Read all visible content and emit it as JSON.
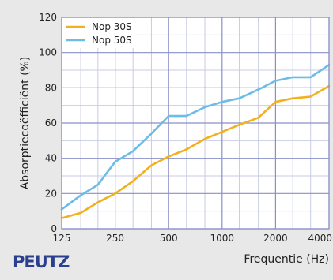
{
  "chart_data": {
    "type": "line",
    "xlabel": "Frequentie (Hz)",
    "ylabel": "Absorptiecoëfficiënt (%)",
    "xscale": "log",
    "xlim": [
      125,
      4000
    ],
    "ylim": [
      0,
      120
    ],
    "grid": true,
    "legend_position": "top-left",
    "x_tick_labels": [
      "125",
      "250",
      "500",
      "1000",
      "2000",
      "4000"
    ],
    "x_tick_values": [
      125,
      250,
      500,
      1000,
      2000,
      4000
    ],
    "y_tick_labels": [
      "0",
      "20",
      "40",
      "60",
      "80",
      "100",
      "120"
    ],
    "y_tick_values": [
      0,
      20,
      40,
      60,
      80,
      100,
      120
    ],
    "x": [
      125,
      160,
      200,
      250,
      315,
      400,
      500,
      630,
      800,
      1000,
      1250,
      1600,
      2000,
      2500,
      3150,
      4000
    ],
    "series": [
      {
        "name": "Nop 30S",
        "color": "#f3b01c",
        "values": [
          6,
          9,
          15,
          20,
          27,
          36,
          41,
          45,
          51,
          55,
          59,
          63,
          72,
          74,
          75,
          81
        ]
      },
      {
        "name": "Nop 50S",
        "color": "#6bbde8",
        "values": [
          11,
          19,
          25,
          38,
          44,
          54,
          64,
          64,
          69,
          72,
          74,
          79,
          84,
          86,
          86,
          93
        ]
      }
    ]
  },
  "brand": {
    "logo_text": "PEUTZ",
    "logo_color": "#2b3f8f"
  },
  "colors": {
    "plot_background": "#ffffff",
    "major_grid": "#8a8fc8",
    "minor_grid": "#c9cbe6",
    "page_background": "#e8e8e8"
  }
}
